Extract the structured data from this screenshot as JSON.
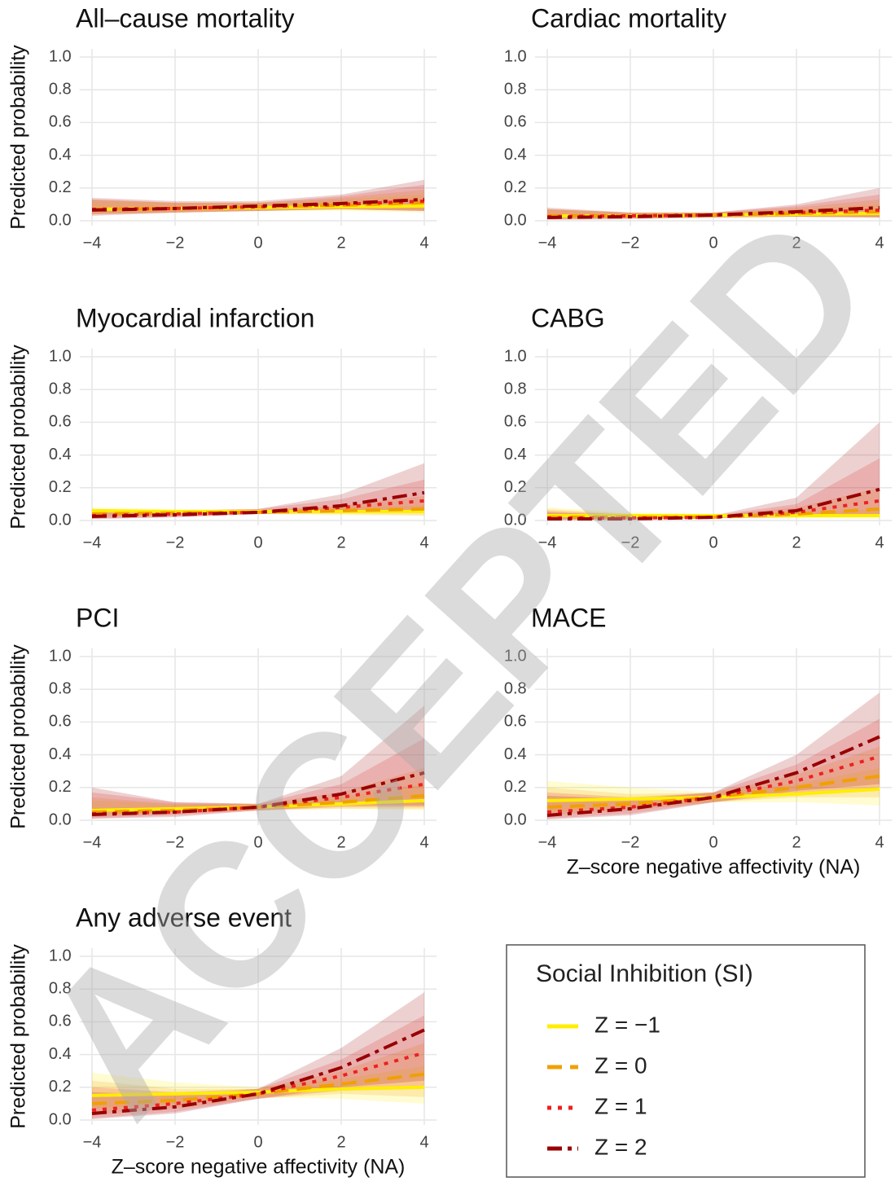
{
  "watermark": "ACCEPTED",
  "legend": {
    "title": "Social Inhibition (SI)",
    "entries": [
      {
        "name": "Z = −1",
        "color": "#ffee00",
        "dash": "solid"
      },
      {
        "name": "Z = 0",
        "color": "#f0a000",
        "dash": "dashed"
      },
      {
        "name": "Z = 1",
        "color": "#ee2020",
        "dash": "dotted"
      },
      {
        "name": "Z = 2",
        "color": "#990000",
        "dash": "dotdash"
      }
    ]
  },
  "chart_data": [
    {
      "type": "line",
      "title": "All–cause mortality",
      "ylabel": "Predicted probability",
      "x": [
        -4,
        -2,
        0,
        2,
        4
      ],
      "xlim": [
        -4.3,
        4.3
      ],
      "ylim": [
        -0.03,
        1.05
      ],
      "xticks": [
        {
          "value": -4,
          "label": "−4"
        },
        {
          "value": -2,
          "label": "−2"
        },
        0,
        2,
        4
      ],
      "yticks": [
        {
          "value": 0,
          "label": "0.0"
        },
        0.2,
        0.4,
        0.6,
        0.8,
        {
          "value": 1,
          "label": "1.0"
        }
      ],
      "grid": true,
      "series": [
        {
          "values": [
            0.07,
            0.075,
            0.08,
            0.085,
            0.09
          ],
          "lower": [
            0.04,
            0.05,
            0.06,
            0.06,
            0.05
          ],
          "upper": [
            0.12,
            0.11,
            0.11,
            0.13,
            0.16
          ]
        },
        {
          "values": [
            0.07,
            0.075,
            0.085,
            0.095,
            0.11
          ],
          "lower": [
            0.04,
            0.05,
            0.06,
            0.07,
            0.06
          ],
          "upper": [
            0.13,
            0.11,
            0.11,
            0.14,
            0.19
          ]
        },
        {
          "values": [
            0.07,
            0.075,
            0.085,
            0.1,
            0.12
          ],
          "lower": [
            0.04,
            0.05,
            0.06,
            0.07,
            0.06
          ],
          "upper": [
            0.13,
            0.11,
            0.11,
            0.15,
            0.22
          ]
        },
        {
          "values": [
            0.065,
            0.075,
            0.09,
            0.105,
            0.13
          ],
          "lower": [
            0.03,
            0.05,
            0.06,
            0.07,
            0.06
          ],
          "upper": [
            0.14,
            0.12,
            0.12,
            0.16,
            0.25
          ]
        }
      ]
    },
    {
      "type": "line",
      "title": "Cardiac mortality",
      "x": [
        -4,
        -2,
        0,
        2,
        4
      ],
      "xlim": [
        -4.3,
        4.3
      ],
      "ylim": [
        -0.03,
        1.05
      ],
      "xticks": [
        {
          "value": -4,
          "label": "−4"
        },
        {
          "value": -2,
          "label": "−2"
        },
        0,
        2,
        4
      ],
      "yticks": [
        {
          "value": 0,
          "label": "0.0"
        },
        0.2,
        0.4,
        0.6,
        0.8,
        {
          "value": 1,
          "label": "1.0"
        }
      ],
      "grid": true,
      "series": [
        {
          "values": [
            0.03,
            0.03,
            0.035,
            0.04,
            0.045
          ],
          "lower": [
            0.01,
            0.015,
            0.02,
            0.02,
            0.02
          ],
          "upper": [
            0.07,
            0.05,
            0.05,
            0.07,
            0.1
          ]
        },
        {
          "values": [
            0.03,
            0.03,
            0.035,
            0.045,
            0.055
          ],
          "lower": [
            0.01,
            0.015,
            0.02,
            0.025,
            0.02
          ],
          "upper": [
            0.07,
            0.05,
            0.05,
            0.08,
            0.13
          ]
        },
        {
          "values": [
            0.025,
            0.03,
            0.035,
            0.05,
            0.065
          ],
          "lower": [
            0.01,
            0.015,
            0.02,
            0.025,
            0.02
          ],
          "upper": [
            0.07,
            0.05,
            0.05,
            0.09,
            0.16
          ]
        },
        {
          "values": [
            0.02,
            0.025,
            0.035,
            0.055,
            0.08
          ],
          "lower": [
            0.005,
            0.01,
            0.02,
            0.025,
            0.02
          ],
          "upper": [
            0.08,
            0.05,
            0.05,
            0.1,
            0.2
          ]
        }
      ]
    },
    {
      "type": "line",
      "title": "Myocardial infarction",
      "ylabel": "Predicted probability",
      "x": [
        -4,
        -2,
        0,
        2,
        4
      ],
      "xlim": [
        -4.3,
        4.3
      ],
      "ylim": [
        -0.03,
        1.05
      ],
      "xticks": [
        {
          "value": -4,
          "label": "−4"
        },
        {
          "value": -2,
          "label": "−2"
        },
        0,
        2,
        4
      ],
      "yticks": [
        {
          "value": 0,
          "label": "0.0"
        },
        0.2,
        0.4,
        0.6,
        0.8,
        {
          "value": 1,
          "label": "1.0"
        }
      ],
      "grid": true,
      "series": [
        {
          "values": [
            0.06,
            0.055,
            0.055,
            0.055,
            0.055
          ],
          "lower": [
            0.04,
            0.04,
            0.04,
            0.03,
            0.03
          ],
          "upper": [
            0.08,
            0.07,
            0.07,
            0.08,
            0.09
          ]
        },
        {
          "values": [
            0.04,
            0.045,
            0.05,
            0.06,
            0.07
          ],
          "lower": [
            0.02,
            0.03,
            0.04,
            0.04,
            0.03
          ],
          "upper": [
            0.07,
            0.06,
            0.06,
            0.09,
            0.15
          ]
        },
        {
          "values": [
            0.03,
            0.04,
            0.05,
            0.08,
            0.12
          ],
          "lower": [
            0.01,
            0.02,
            0.04,
            0.05,
            0.05
          ],
          "upper": [
            0.07,
            0.06,
            0.07,
            0.13,
            0.25
          ]
        },
        {
          "values": [
            0.025,
            0.035,
            0.05,
            0.09,
            0.17
          ],
          "lower": [
            0.01,
            0.02,
            0.04,
            0.05,
            0.06
          ],
          "upper": [
            0.07,
            0.06,
            0.07,
            0.16,
            0.35
          ]
        }
      ]
    },
    {
      "type": "line",
      "title": "CABG",
      "x": [
        -4,
        -2,
        0,
        2,
        4
      ],
      "xlim": [
        -4.3,
        4.3
      ],
      "ylim": [
        -0.03,
        1.05
      ],
      "xticks": [
        {
          "value": -4,
          "label": "−4"
        },
        {
          "value": -2,
          "label": "−2"
        },
        0,
        2,
        4
      ],
      "yticks": [
        {
          "value": 0,
          "label": "0.0"
        },
        0.2,
        0.4,
        0.6,
        0.8,
        {
          "value": 1,
          "label": "1.0"
        }
      ],
      "grid": true,
      "series": [
        {
          "values": [
            0.03,
            0.03,
            0.03,
            0.03,
            0.03
          ],
          "lower": [
            0.01,
            0.015,
            0.02,
            0.015,
            0.01
          ],
          "upper": [
            0.08,
            0.05,
            0.04,
            0.05,
            0.07
          ]
        },
        {
          "values": [
            0.02,
            0.02,
            0.02,
            0.04,
            0.07
          ],
          "lower": [
            0.005,
            0.01,
            0.015,
            0.02,
            0.02
          ],
          "upper": [
            0.07,
            0.04,
            0.03,
            0.08,
            0.2
          ]
        },
        {
          "values": [
            0.015,
            0.015,
            0.02,
            0.05,
            0.12
          ],
          "lower": [
            0.003,
            0.006,
            0.015,
            0.02,
            0.02
          ],
          "upper": [
            0.06,
            0.035,
            0.03,
            0.1,
            0.38
          ]
        },
        {
          "values": [
            0.01,
            0.01,
            0.02,
            0.06,
            0.19
          ],
          "lower": [
            0.002,
            0.004,
            0.015,
            0.02,
            0.03
          ],
          "upper": [
            0.05,
            0.03,
            0.03,
            0.14,
            0.6
          ]
        }
      ]
    },
    {
      "type": "line",
      "title": "PCI",
      "ylabel": "Predicted probability",
      "x": [
        -4,
        -2,
        0,
        2,
        4
      ],
      "xlim": [
        -4.3,
        4.3
      ],
      "ylim": [
        -0.03,
        1.05
      ],
      "xticks": [
        {
          "value": -4,
          "label": "−4"
        },
        {
          "value": -2,
          "label": "−2"
        },
        0,
        2,
        4
      ],
      "yticks": [
        {
          "value": 0,
          "label": "0.0"
        },
        0.2,
        0.4,
        0.6,
        0.8,
        {
          "value": 1,
          "label": "1.0"
        }
      ],
      "grid": true,
      "series": [
        {
          "values": [
            0.06,
            0.07,
            0.08,
            0.1,
            0.12
          ],
          "lower": [
            0.03,
            0.05,
            0.06,
            0.07,
            0.06
          ],
          "upper": [
            0.12,
            0.1,
            0.1,
            0.14,
            0.22
          ]
        },
        {
          "values": [
            0.05,
            0.06,
            0.08,
            0.11,
            0.15
          ],
          "lower": [
            0.02,
            0.04,
            0.06,
            0.07,
            0.07
          ],
          "upper": [
            0.14,
            0.1,
            0.1,
            0.17,
            0.32
          ]
        },
        {
          "values": [
            0.04,
            0.05,
            0.08,
            0.14,
            0.22
          ],
          "lower": [
            0.01,
            0.03,
            0.06,
            0.08,
            0.08
          ],
          "upper": [
            0.17,
            0.11,
            0.1,
            0.22,
            0.5
          ]
        },
        {
          "values": [
            0.035,
            0.05,
            0.08,
            0.16,
            0.29
          ],
          "lower": [
            0.01,
            0.02,
            0.06,
            0.09,
            0.09
          ],
          "upper": [
            0.2,
            0.11,
            0.1,
            0.27,
            0.7
          ]
        }
      ]
    },
    {
      "type": "line",
      "title": "MACE",
      "xlabel": "Z–score negative affectivity (NA)",
      "x": [
        -4,
        -2,
        0,
        2,
        4
      ],
      "xlim": [
        -4.3,
        4.3
      ],
      "ylim": [
        -0.03,
        1.05
      ],
      "xticks": [
        {
          "value": -4,
          "label": "−4"
        },
        {
          "value": -2,
          "label": "−2"
        },
        0,
        2,
        4
      ],
      "yticks": [
        {
          "value": 0,
          "label": "0.0"
        },
        0.2,
        0.4,
        0.6,
        0.8,
        {
          "value": 1,
          "label": "1.0"
        }
      ],
      "grid": true,
      "series": [
        {
          "values": [
            0.12,
            0.13,
            0.14,
            0.16,
            0.19
          ],
          "lower": [
            0.05,
            0.08,
            0.11,
            0.11,
            0.09
          ],
          "upper": [
            0.24,
            0.2,
            0.17,
            0.22,
            0.32
          ]
        },
        {
          "values": [
            0.08,
            0.1,
            0.14,
            0.2,
            0.27
          ],
          "lower": [
            0.03,
            0.06,
            0.11,
            0.14,
            0.14
          ],
          "upper": [
            0.2,
            0.16,
            0.17,
            0.28,
            0.45
          ]
        },
        {
          "values": [
            0.05,
            0.08,
            0.14,
            0.24,
            0.39
          ],
          "lower": [
            0.01,
            0.04,
            0.11,
            0.16,
            0.18
          ],
          "upper": [
            0.17,
            0.14,
            0.17,
            0.34,
            0.62
          ]
        },
        {
          "values": [
            0.03,
            0.07,
            0.14,
            0.29,
            0.51
          ],
          "lower": [
            0.005,
            0.03,
            0.11,
            0.18,
            0.22
          ],
          "upper": [
            0.15,
            0.13,
            0.17,
            0.4,
            0.78
          ]
        }
      ]
    },
    {
      "type": "line",
      "title": "Any adverse event",
      "ylabel": "Predicted probability",
      "xlabel": "Z–score negative affectivity (NA)",
      "x": [
        -4,
        -2,
        0,
        2,
        4
      ],
      "xlim": [
        -4.3,
        4.3
      ],
      "ylim": [
        -0.03,
        1.05
      ],
      "xticks": [
        {
          "value": -4,
          "label": "−4"
        },
        {
          "value": -2,
          "label": "−2"
        },
        0,
        2,
        4
      ],
      "yticks": [
        {
          "value": 0,
          "label": "0.0"
        },
        0.2,
        0.4,
        0.6,
        0.8,
        {
          "value": 1,
          "label": "1.0"
        }
      ],
      "grid": true,
      "series": [
        {
          "values": [
            0.15,
            0.16,
            0.17,
            0.19,
            0.2
          ],
          "lower": [
            0.07,
            0.1,
            0.14,
            0.13,
            0.1
          ],
          "upper": [
            0.29,
            0.23,
            0.2,
            0.25,
            0.33
          ]
        },
        {
          "values": [
            0.1,
            0.12,
            0.16,
            0.22,
            0.28
          ],
          "lower": [
            0.03,
            0.07,
            0.13,
            0.16,
            0.14
          ],
          "upper": [
            0.24,
            0.19,
            0.19,
            0.3,
            0.47
          ]
        },
        {
          "values": [
            0.06,
            0.1,
            0.16,
            0.27,
            0.41
          ],
          "lower": [
            0.01,
            0.05,
            0.13,
            0.18,
            0.19
          ],
          "upper": [
            0.2,
            0.17,
            0.19,
            0.37,
            0.64
          ]
        },
        {
          "values": [
            0.04,
            0.08,
            0.16,
            0.32,
            0.55
          ],
          "lower": [
            0.005,
            0.04,
            0.13,
            0.2,
            0.24
          ],
          "upper": [
            0.17,
            0.15,
            0.19,
            0.44,
            0.78
          ]
        }
      ]
    }
  ]
}
